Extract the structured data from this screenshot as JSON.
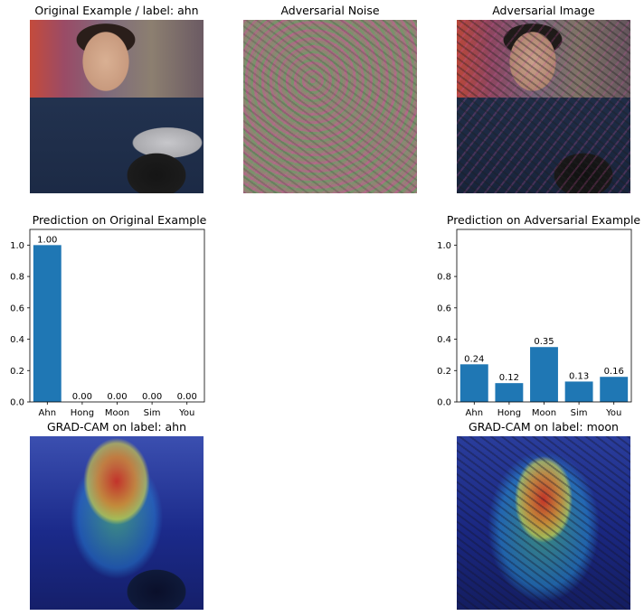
{
  "titles": {
    "original": "Original Example / label: ahn",
    "noise": "Adversarial Noise",
    "adversarial": "Adversarial Image",
    "pred_original": "Prediction on Original Example",
    "pred_adversarial": "Prediction on Adversarial Example",
    "gradcam_original": "GRAD-CAM on label: ahn",
    "gradcam_adversarial": "GRAD-CAM on label: moon"
  },
  "chart_data": [
    {
      "type": "bar",
      "title": "Prediction on Original Example",
      "categories": [
        "Ahn",
        "Hong",
        "Moon",
        "Sim",
        "You"
      ],
      "values": [
        1.0,
        0.0,
        0.0,
        0.0,
        0.0
      ],
      "value_labels": [
        "1.00",
        "0.00",
        "0.00",
        "0.00",
        "0.00"
      ],
      "ylim": [
        0,
        1.1
      ],
      "yticks": [
        "0.0",
        "0.2",
        "0.4",
        "0.6",
        "0.8",
        "1.0"
      ],
      "bar_color": "#1f77b4"
    },
    {
      "type": "bar",
      "title": "Prediction on Adversarial Example",
      "categories": [
        "Ahn",
        "Hong",
        "Moon",
        "Sim",
        "You"
      ],
      "values": [
        0.24,
        0.12,
        0.35,
        0.13,
        0.16
      ],
      "value_labels": [
        "0.24",
        "0.12",
        "0.35",
        "0.13",
        "0.16"
      ],
      "ylim": [
        0,
        1.1
      ],
      "yticks": [
        "0.0",
        "0.2",
        "0.4",
        "0.6",
        "0.8",
        "1.0"
      ],
      "bar_color": "#1f77b4"
    }
  ]
}
